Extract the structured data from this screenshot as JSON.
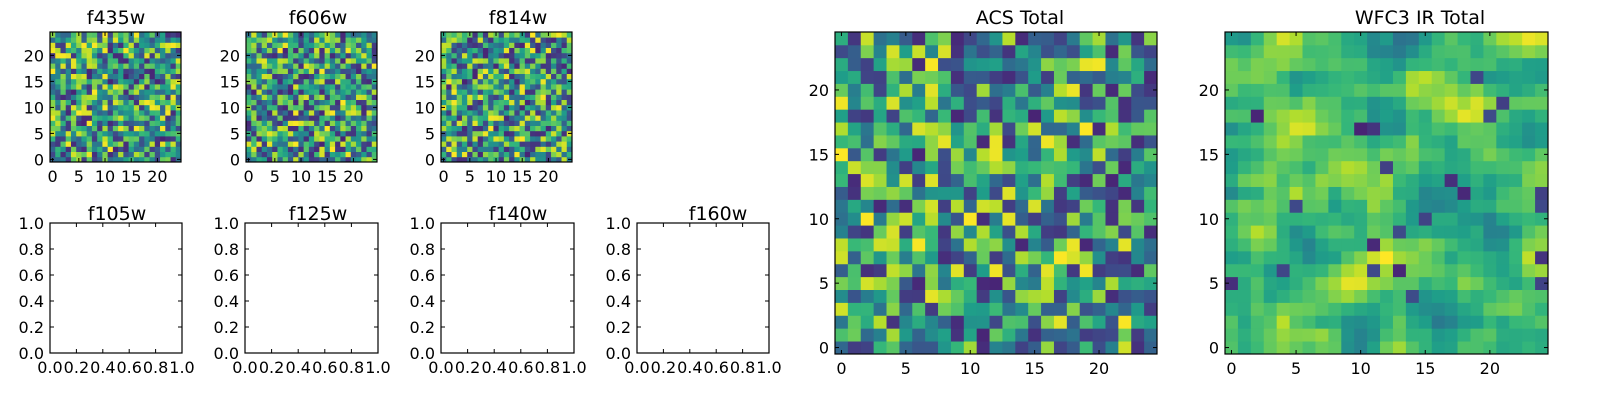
{
  "figure": {
    "background": "#ffffff"
  },
  "chart_data": [
    {
      "id": "f435w",
      "type": "heatmap",
      "title": "f435w",
      "grid_size": 25,
      "xlim": [
        -0.5,
        24.5
      ],
      "ylim": [
        -0.5,
        24.5
      ],
      "xticks": [
        0,
        5,
        10,
        15,
        20
      ],
      "yticks": [
        0,
        5,
        10,
        15,
        20
      ],
      "seed": 11,
      "colormap": "viridis"
    },
    {
      "id": "f606w",
      "type": "heatmap",
      "title": "f606w",
      "grid_size": 25,
      "xlim": [
        -0.5,
        24.5
      ],
      "ylim": [
        -0.5,
        24.5
      ],
      "xticks": [
        0,
        5,
        10,
        15,
        20
      ],
      "yticks": [
        0,
        5,
        10,
        15,
        20
      ],
      "seed": 23,
      "colormap": "viridis"
    },
    {
      "id": "f814w",
      "type": "heatmap",
      "title": "f814w",
      "grid_size": 25,
      "xlim": [
        -0.5,
        24.5
      ],
      "ylim": [
        -0.5,
        24.5
      ],
      "xticks": [
        0,
        5,
        10,
        15,
        20
      ],
      "yticks": [
        0,
        5,
        10,
        15,
        20
      ],
      "seed": 37,
      "colormap": "viridis"
    },
    {
      "id": "f105w",
      "type": "empty",
      "title": "f105w",
      "xlim": [
        0,
        1
      ],
      "ylim": [
        0,
        1
      ],
      "xticks": [
        "0.0",
        "0.2",
        "0.4",
        "0.6",
        "0.8",
        "1.0"
      ],
      "yticks": [
        "0.0",
        "0.2",
        "0.4",
        "0.6",
        "0.8",
        "1.0"
      ]
    },
    {
      "id": "f125w",
      "type": "empty",
      "title": "f125w",
      "xlim": [
        0,
        1
      ],
      "ylim": [
        0,
        1
      ],
      "xticks": [
        "0.0",
        "0.2",
        "0.4",
        "0.6",
        "0.8",
        "1.0"
      ],
      "yticks": [
        "0.0",
        "0.2",
        "0.4",
        "0.6",
        "0.8",
        "1.0"
      ]
    },
    {
      "id": "f140w",
      "type": "empty",
      "title": "f140w",
      "xlim": [
        0,
        1
      ],
      "ylim": [
        0,
        1
      ],
      "xticks": [
        "0.0",
        "0.2",
        "0.4",
        "0.6",
        "0.8",
        "1.0"
      ],
      "yticks": [
        "0.0",
        "0.2",
        "0.4",
        "0.6",
        "0.8",
        "1.0"
      ]
    },
    {
      "id": "f160w",
      "type": "empty",
      "title": "f160w",
      "xlim": [
        0,
        1
      ],
      "ylim": [
        0,
        1
      ],
      "xticks": [
        "0.0",
        "0.2",
        "0.4",
        "0.6",
        "0.8",
        "1.0"
      ],
      "yticks": [
        "0.0",
        "0.2",
        "0.4",
        "0.6",
        "0.8",
        "1.0"
      ]
    },
    {
      "id": "acs-total",
      "type": "heatmap",
      "title": "ACS Total",
      "grid_size": 25,
      "xlim": [
        -0.5,
        24.5
      ],
      "ylim": [
        -0.5,
        24.5
      ],
      "xticks": [
        0,
        5,
        10,
        15,
        20
      ],
      "yticks": [
        0,
        5,
        10,
        15,
        20
      ],
      "seed": 53,
      "colormap": "viridis"
    },
    {
      "id": "wfc3-ir-total",
      "type": "heatmap",
      "title": "WFC3 IR Total",
      "grid_size": 25,
      "xlim": [
        -0.5,
        24.5
      ],
      "ylim": [
        -0.5,
        24.5
      ],
      "xticks": [
        0,
        5,
        10,
        15,
        20
      ],
      "yticks": [
        0,
        5,
        10,
        15,
        20
      ],
      "seed": 71,
      "smooth": true,
      "colormap": "viridis"
    }
  ]
}
